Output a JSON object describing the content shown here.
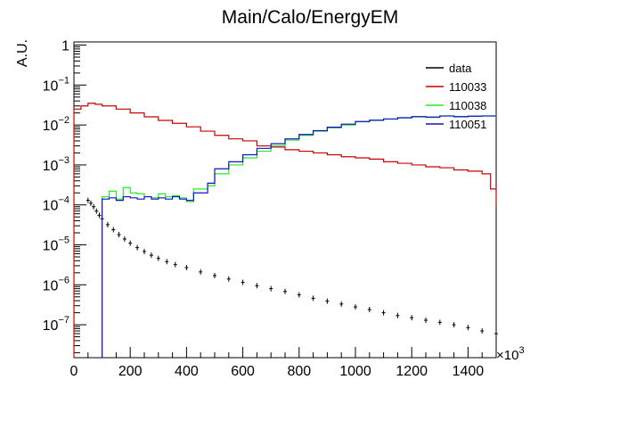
{
  "chart_data": {
    "type": "histogram",
    "title": "Main/Calo/EnergyEM",
    "ylabel": "A.U.",
    "xlabel": "",
    "x_multiplier_label": "×10",
    "x_multiplier_exponent": "3",
    "xlim": [
      0,
      1500
    ],
    "ylim": [
      1.5e-08,
      1.2
    ],
    "yscale": "log",
    "x_ticks": [
      "0",
      "200",
      "400",
      "600",
      "800",
      "1000",
      "1200",
      "1400"
    ],
    "y_ticks": [
      {
        "base": "1",
        "exp": ""
      },
      {
        "base": "10",
        "exp": "−1"
      },
      {
        "base": "10",
        "exp": "−2"
      },
      {
        "base": "10",
        "exp": "−3"
      },
      {
        "base": "10",
        "exp": "−4"
      },
      {
        "base": "10",
        "exp": "−5"
      },
      {
        "base": "10",
        "exp": "−6"
      },
      {
        "base": "10",
        "exp": "−7"
      }
    ],
    "legend_position": "top-right",
    "series": [
      {
        "name": "data",
        "color": "#000000",
        "style": "points-with-errors",
        "x": [
          50,
          60,
          70,
          80,
          90,
          100,
          120,
          140,
          160,
          180,
          200,
          225,
          250,
          275,
          300,
          330,
          360,
          400,
          450,
          500,
          550,
          600,
          650,
          700,
          750,
          800,
          850,
          900,
          950,
          1000,
          1050,
          1100,
          1150,
          1200,
          1250,
          1300,
          1350,
          1400,
          1450,
          1500
        ],
        "y": [
          0.00013,
          0.00011,
          9e-05,
          7e-05,
          5.5e-05,
          4.5e-05,
          3.2e-05,
          2.4e-05,
          1.8e-05,
          1.4e-05,
          1.1e-05,
          8.5e-06,
          6.8e-06,
          5.5e-06,
          4.6e-06,
          3.8e-06,
          3.2e-06,
          2.7e-06,
          2.1e-06,
          1.7e-06,
          1.4e-06,
          1.15e-06,
          9.5e-07,
          8e-07,
          6.8e-07,
          5.6e-07,
          4.6e-07,
          3.9e-07,
          3.3e-07,
          2.8e-07,
          2.4e-07,
          2e-07,
          1.7e-07,
          1.5e-07,
          1.3e-07,
          1.15e-07,
          1e-07,
          8.5e-08,
          7e-08,
          6e-08
        ]
      },
      {
        "name": "110033",
        "color": "#cc0000",
        "style": "step",
        "x": [
          0,
          25,
          50,
          75,
          100,
          150,
          200,
          250,
          300,
          350,
          400,
          450,
          500,
          550,
          600,
          650,
          700,
          750,
          800,
          850,
          900,
          950,
          1000,
          1050,
          1100,
          1150,
          1200,
          1250,
          1300,
          1350,
          1400,
          1450,
          1480,
          1500
        ],
        "y": [
          0.025,
          0.03,
          0.035,
          0.033,
          0.03,
          0.025,
          0.02,
          0.016,
          0.013,
          0.011,
          0.009,
          0.007,
          0.0055,
          0.0045,
          0.004,
          0.003,
          0.0028,
          0.0024,
          0.0022,
          0.002,
          0.0018,
          0.0016,
          0.0015,
          0.0014,
          0.0012,
          0.0011,
          0.001,
          0.0009,
          0.00085,
          0.00075,
          0.0007,
          0.0006,
          0.00025,
          0.0001
        ]
      },
      {
        "name": "110038",
        "color": "#22ee22",
        "style": "step",
        "x": [
          100,
          125,
          150,
          175,
          200,
          225,
          250,
          275,
          300,
          325,
          350,
          375,
          400,
          425,
          450,
          475,
          500,
          550,
          600,
          650,
          700,
          750,
          800,
          850,
          900,
          950,
          1000,
          1050,
          1100,
          1150,
          1200,
          1250,
          1300,
          1350,
          1400,
          1450,
          1500
        ],
        "y": [
          0.00016,
          0.00022,
          0.00014,
          0.00027,
          0.0002,
          0.00019,
          0.00016,
          0.00015,
          0.00019,
          0.00016,
          0.00017,
          0.00015,
          0.00012,
          0.00025,
          0.00025,
          0.0003,
          0.0006,
          0.001,
          0.0015,
          0.0022,
          0.003,
          0.0042,
          0.0055,
          0.007,
          0.0085,
          0.01,
          0.012,
          0.013,
          0.014,
          0.015,
          0.016,
          0.0155,
          0.017,
          0.016,
          0.0165,
          0.017,
          0.016
        ]
      },
      {
        "name": "110051",
        "color": "#1111cc",
        "style": "step",
        "x": [
          100,
          125,
          150,
          175,
          200,
          225,
          250,
          275,
          300,
          325,
          350,
          375,
          400,
          425,
          450,
          475,
          500,
          550,
          600,
          650,
          700,
          750,
          800,
          850,
          900,
          950,
          1000,
          1050,
          1100,
          1150,
          1200,
          1250,
          1300,
          1350,
          1400,
          1450,
          1500
        ],
        "y": [
          0.00014,
          0.00015,
          0.00013,
          0.00016,
          0.00015,
          0.00014,
          0.00016,
          0.00014,
          0.00015,
          0.00014,
          0.00016,
          0.00014,
          0.00013,
          0.0002,
          0.0002,
          0.00035,
          0.0008,
          0.0012,
          0.0018,
          0.0026,
          0.0034,
          0.0045,
          0.0058,
          0.0072,
          0.0088,
          0.0105,
          0.0122,
          0.0132,
          0.0142,
          0.0152,
          0.0162,
          0.0158,
          0.0168,
          0.0162,
          0.0166,
          0.0168,
          0.0162
        ]
      }
    ]
  }
}
